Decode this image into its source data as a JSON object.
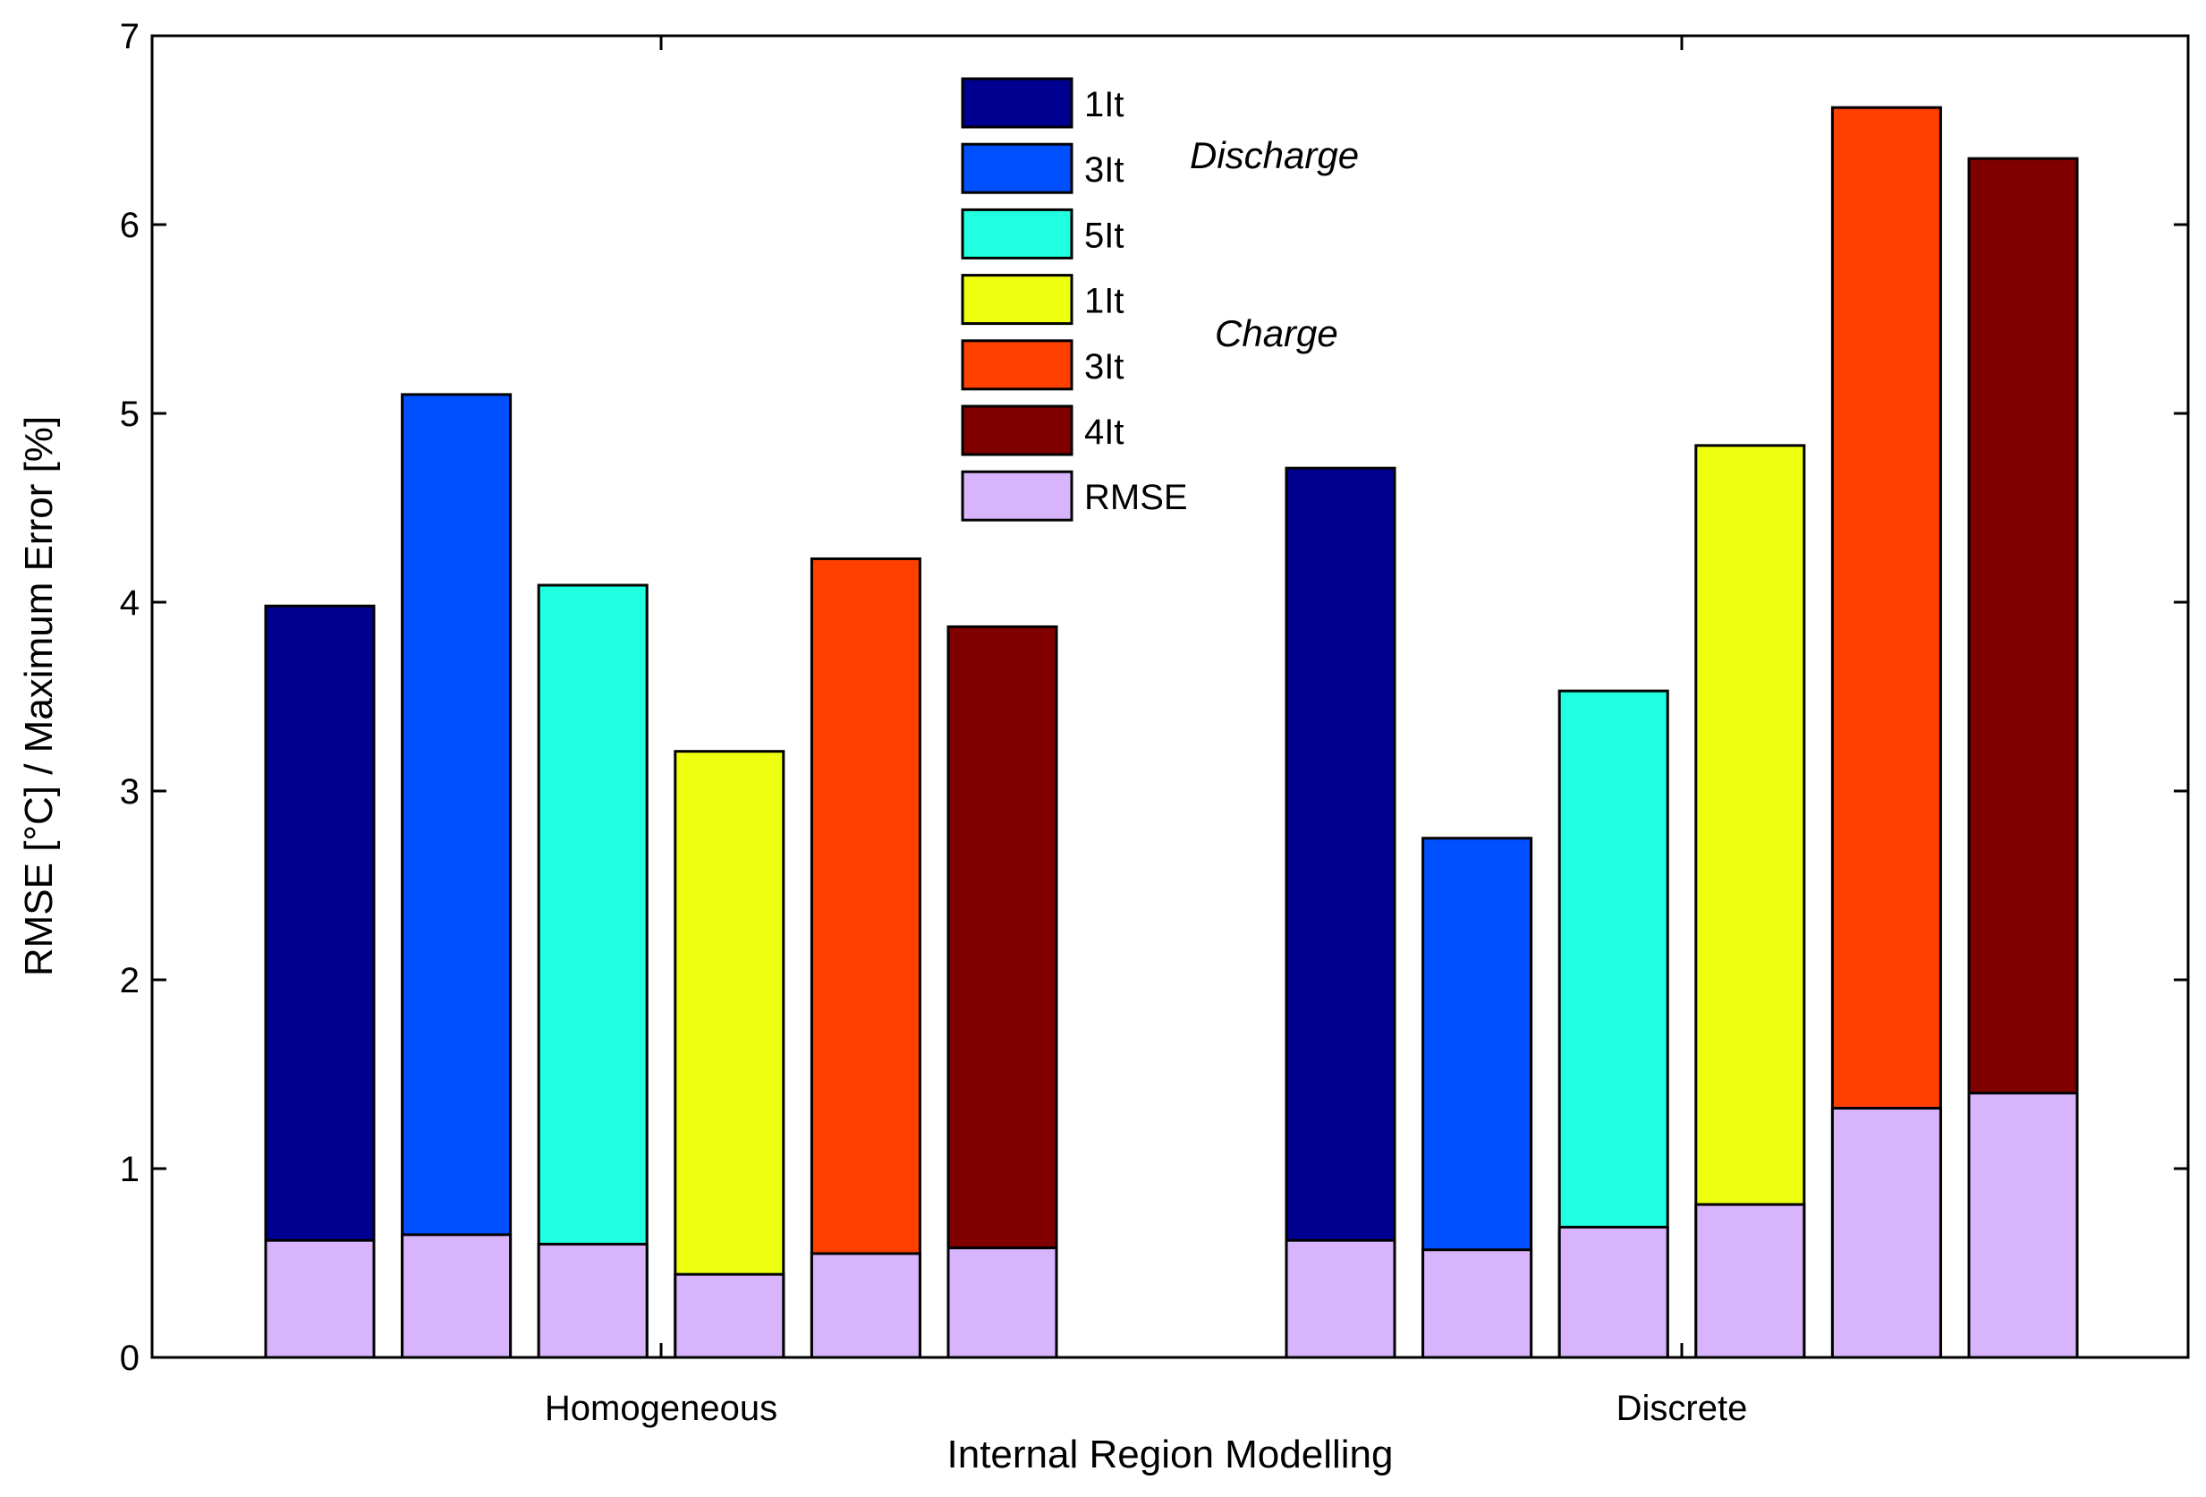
{
  "chart_data": {
    "type": "bar",
    "layout": "grouped-stacked",
    "title": "",
    "xlabel": "Internal Region Modelling",
    "ylabel": "RMSE [°C] / Maximum Error [%]",
    "ylim": [
      0,
      7
    ],
    "yticks": [
      0,
      1,
      2,
      3,
      4,
      5,
      6,
      7
    ],
    "ytick_labels": [
      "0",
      "1",
      "2",
      "3",
      "4",
      "5",
      "6",
      "7"
    ],
    "grid": false,
    "legend_position": "top-center",
    "categories": [
      "Homogeneous",
      "Discrete"
    ],
    "stack_base": {
      "name": "RMSE",
      "color": "#d8b4fc"
    },
    "series": [
      {
        "name": "1It",
        "group": "Discharge",
        "color": "#000090",
        "max_error": [
          3.98,
          4.71
        ],
        "rmse": [
          0.62,
          0.62
        ]
      },
      {
        "name": "3It",
        "group": "Discharge",
        "color": "#0050ff",
        "max_error": [
          5.1,
          2.75
        ],
        "rmse": [
          0.65,
          0.57
        ]
      },
      {
        "name": "5It",
        "group": "Discharge",
        "color": "#20ffdf",
        "max_error": [
          4.09,
          3.53
        ],
        "rmse": [
          0.6,
          0.69
        ]
      },
      {
        "name": "1It",
        "group": "Charge",
        "color": "#efff10",
        "max_error": [
          3.21,
          4.83
        ],
        "rmse": [
          0.44,
          0.81
        ]
      },
      {
        "name": "3It",
        "group": "Charge",
        "color": "#ff4000",
        "max_error": [
          4.23,
          6.62
        ],
        "rmse": [
          0.55,
          1.32
        ]
      },
      {
        "name": "4It",
        "group": "Charge",
        "color": "#800000",
        "max_error": [
          3.87,
          6.35
        ],
        "rmse": [
          0.58,
          1.4
        ]
      }
    ],
    "legend": [
      {
        "label": "1It",
        "color": "#000090"
      },
      {
        "label": "3It",
        "color": "#0050ff"
      },
      {
        "label": "5It",
        "color": "#20ffdf"
      },
      {
        "label": "1It",
        "color": "#efff10"
      },
      {
        "label": "3It",
        "color": "#ff4000"
      },
      {
        "label": "4It",
        "color": "#800000"
      },
      {
        "label": "RMSE",
        "color": "#d8b4fc"
      }
    ],
    "annotations": [
      "Discharge",
      "Charge"
    ]
  }
}
